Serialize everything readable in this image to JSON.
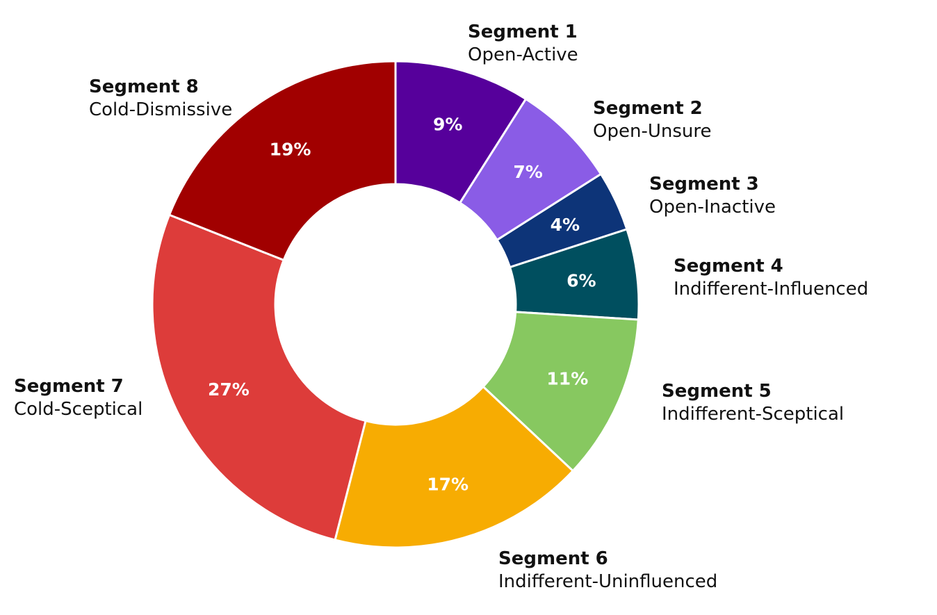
{
  "chart_data": {
    "type": "pie",
    "donut": true,
    "series": [
      {
        "title": "Segment 1",
        "subtitle": "Open-Active",
        "value": 9,
        "label": "9%",
        "color": "#56009B"
      },
      {
        "title": "Segment 2",
        "subtitle": "Open-Unsure",
        "value": 7,
        "label": "7%",
        "color": "#8A5CE6"
      },
      {
        "title": "Segment 3",
        "subtitle": "Open-Inactive",
        "value": 4,
        "label": "4%",
        "color": "#0D3478"
      },
      {
        "title": "Segment 4",
        "subtitle": "Indifferent-Influenced",
        "value": 6,
        "label": "6%",
        "color": "#004F5F"
      },
      {
        "title": "Segment 5",
        "subtitle": "Indifferent-Sceptical",
        "value": 11,
        "label": "11%",
        "color": "#87C860"
      },
      {
        "title": "Segment 6",
        "subtitle": "Indifferent-Uninfluenced",
        "value": 17,
        "label": "17%",
        "color": "#F7AC02"
      },
      {
        "title": "Segment 7",
        "subtitle": "Cold-Sceptical",
        "value": 27,
        "label": "27%",
        "color": "#DD3C3A"
      },
      {
        "title": "Segment 8",
        "subtitle": "Cold-Dismissive",
        "value": 19,
        "label": "19%",
        "color": "#A10000"
      }
    ],
    "start_angle_deg": 0,
    "direction": "clockwise",
    "legend": "outside-labels"
  }
}
